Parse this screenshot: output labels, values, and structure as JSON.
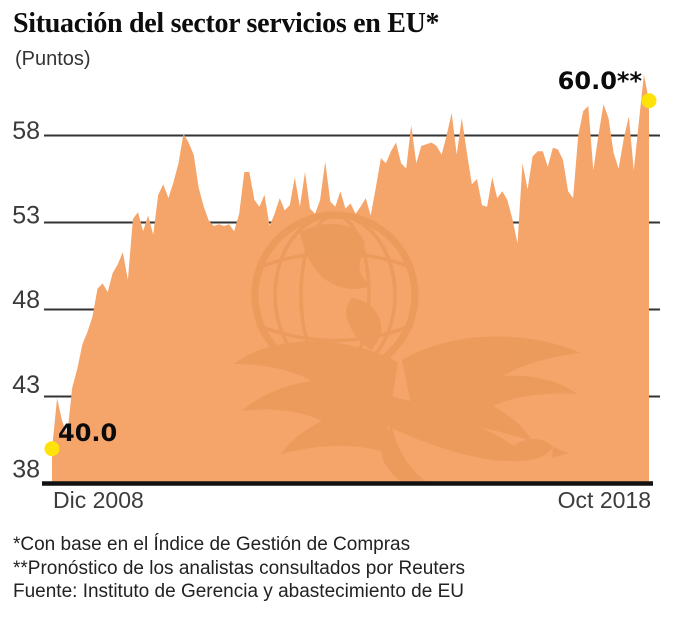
{
  "header": {
    "title": "Situación del sector servicios en EU*",
    "subtitle": "(Puntos)"
  },
  "annotations": {
    "start_label": "40.0",
    "end_label": "60.0**"
  },
  "footnotes": [
    "*Con base en el Índice de Gestión de Compras",
    "**Pronóstico de los analistas consultados por Reuters",
    "Fuente: Instituto de Gerencia y abastecimiento de EU"
  ],
  "colors": {
    "area": "#F5A46A",
    "watermark": "#C4741F",
    "grid": "#333333",
    "axis": "#111111",
    "dot": "#FFE20A",
    "tick_text": "#3A3A3A"
  },
  "chart_data": {
    "type": "area",
    "title": "Situación del sector servicios en EU*",
    "units_label": "Puntos",
    "x_start_label": "Dic 2008",
    "x_end_label": "Oct 2018",
    "y_ticks": [
      58,
      53,
      48,
      43,
      38
    ],
    "ylim": [
      38,
      62
    ],
    "grid": "horizontal",
    "legend": "none",
    "first_point": {
      "x_label": "Dic 2008",
      "value": 40.0,
      "label": "40.0"
    },
    "last_point": {
      "x_label": "Oct 2018",
      "value": 60.0,
      "label": "60.0**"
    },
    "series": [
      {
        "name": "Índice de Gestión de Compras (servicios, EU)",
        "values": [
          40.0,
          42.9,
          41.6,
          40.8,
          43.5,
          44.6,
          46.0,
          46.7,
          47.6,
          49.2,
          49.5,
          49.0,
          50.1,
          50.6,
          51.3,
          49.7,
          53.2,
          53.6,
          52.5,
          53.4,
          52.3,
          54.6,
          55.2,
          54.4,
          55.3,
          56.4,
          58.1,
          57.6,
          56.9,
          55.0,
          53.9,
          53.1,
          52.8,
          52.9,
          52.8,
          52.9,
          52.5,
          53.5,
          55.9,
          55.9,
          54.3,
          53.9,
          54.6,
          52.8,
          53.5,
          54.4,
          53.7,
          54.0,
          55.6,
          53.9,
          55.9,
          53.8,
          53.5,
          54.3,
          56.5,
          54.2,
          53.9,
          54.8,
          53.8,
          54.1,
          53.5,
          53.9,
          54.4,
          53.4,
          55.0,
          56.7,
          56.4,
          57.1,
          57.6,
          56.4,
          56.1,
          58.6,
          56.4,
          57.4,
          57.5,
          57.6,
          57.4,
          56.9,
          58.0,
          59.3,
          56.9,
          59.0,
          57.0,
          55.2,
          55.5,
          54.0,
          53.9,
          55.6,
          54.4,
          54.8,
          54.3,
          53.2,
          51.8,
          56.4,
          54.9,
          56.8,
          57.1,
          57.1,
          56.2,
          57.3,
          57.2,
          56.6,
          54.8,
          54.4,
          58.0,
          59.4,
          59.7,
          56.0,
          58.0,
          59.8,
          59.0,
          57.0,
          56.1,
          57.8,
          59.1,
          56.0,
          58.8,
          61.5,
          60.0
        ]
      }
    ]
  }
}
